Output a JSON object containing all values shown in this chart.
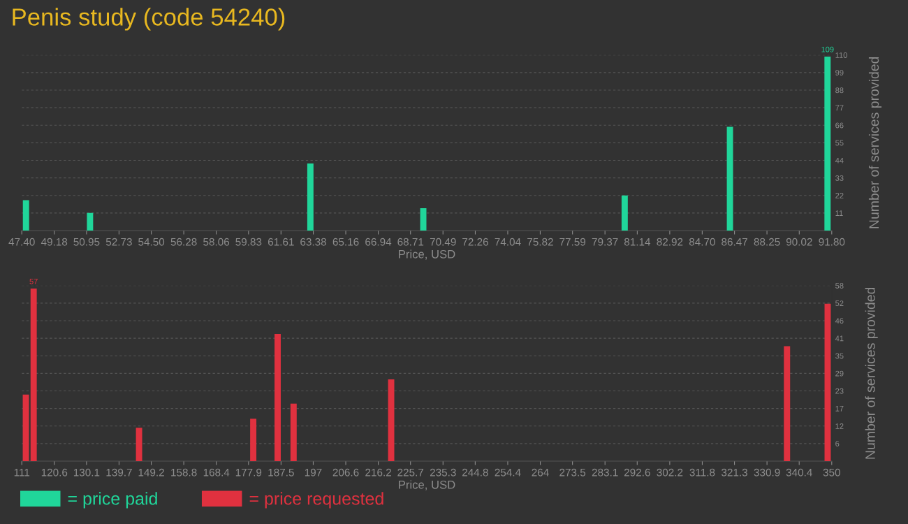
{
  "chart_data": [
    {
      "type": "bar",
      "title": "Penis study (code 54240)",
      "xlabel": "Price, USD",
      "ylabel": "Number of services provided",
      "x": [
        47.63,
        51.14,
        63.22,
        69.41,
        80.45,
        86.22,
        91.57
      ],
      "series": [
        {
          "name": "= price paid",
          "color": "#20d69a",
          "values": [
            19,
            11,
            42,
            14,
            22,
            65,
            109
          ],
          "value_labels": [
            null,
            null,
            null,
            null,
            null,
            null,
            "109"
          ]
        }
      ],
      "xlim": [
        47.4,
        91.8
      ],
      "xticks": [
        {
          "value": 47.4,
          "label": "47.40"
        },
        49.18,
        50.95,
        52.73,
        {
          "value": 54.5,
          "label": "54.50"
        },
        56.28,
        58.06,
        59.83,
        61.61,
        63.38,
        65.16,
        66.94,
        68.71,
        70.49,
        72.26,
        74.04,
        75.82,
        77.59,
        79.37,
        81.14,
        82.92,
        {
          "value": 84.7,
          "label": "84.70"
        },
        86.47,
        88.25,
        90.02,
        {
          "value": 91.8,
          "label": "91.80"
        }
      ],
      "ylim": [
        0,
        110
      ],
      "yticks": [
        11,
        22,
        33,
        44,
        55,
        66,
        77,
        88,
        99,
        110
      ],
      "grid": "y",
      "legend": "bottom"
    },
    {
      "type": "bar",
      "xlabel": "Price, USD",
      "ylabel": "Number of services provided",
      "x": [
        112.2,
        114.5,
        145.6,
        179.3,
        186.5,
        191.2,
        220.0,
        336.8,
        348.8
      ],
      "series": [
        {
          "name": "= price requested",
          "color": "#e0313f",
          "values": [
            22,
            57,
            11,
            14,
            42,
            19,
            27,
            38,
            52
          ],
          "value_labels": [
            null,
            "57",
            null,
            null,
            null,
            null,
            null,
            null,
            null
          ]
        }
      ],
      "xlim": [
        111,
        350
      ],
      "xticks": [
        111,
        120.6,
        130.1,
        139.7,
        149.2,
        158.8,
        168.4,
        177.9,
        187.5,
        197,
        206.6,
        216.2,
        225.7,
        235.3,
        244.8,
        254.4,
        264,
        273.5,
        283.1,
        292.6,
        302.2,
        311.8,
        321.3,
        330.9,
        340.4,
        350
      ],
      "ylim": [
        0,
        58
      ],
      "yticks": [
        {
          "value": 5.8,
          "label": "6"
        },
        {
          "value": 11.6,
          "label": "12"
        },
        {
          "value": 17.4,
          "label": "17"
        },
        {
          "value": 23.2,
          "label": "23"
        },
        29,
        {
          "value": 34.8,
          "label": "35"
        },
        {
          "value": 40.6,
          "label": "41"
        },
        {
          "value": 46.4,
          "label": "46"
        },
        {
          "value": 52.2,
          "label": "52"
        },
        58
      ],
      "grid": "y",
      "legend": "bottom"
    }
  ]
}
